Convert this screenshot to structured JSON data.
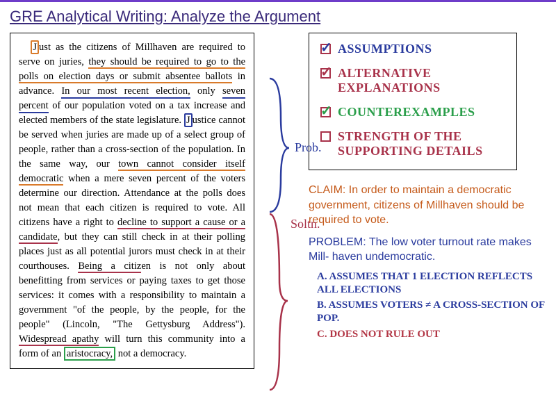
{
  "title": "GRE Analytical Writing: Analyze the Argument",
  "passage": {
    "text_html": "<span class='box-orange'>J</span>ust as the citizens of Millhaven are required to serve on juries, <span class='u-orange'>they should be required to go to the polls on election days or submit absentee ballots</span> in advance. <span class='u-blue'>In our most recent election,</span> only <span class='u-blue'>seven percent</span> of our population voted on a tax increase and elected members of the state legislature. <span class='box-blue'>J</span>ustice cannot be served when juries are made up of a select group of people, rather than a cross-section of the population. In the same way, our <span class='u-orange'>town cannot consider itself democratic</span> when a mere seven percent of the voters determine our direction. Attendance at the polls does not mean that each citizen is required to vote. All citizens have a right to <span class='u-maroon'>decline to support a cause or a candidate</span>, but they can still check in at their polling places just as all potential jurors must check in at their courthouses. <span class='u-maroon'>Being a citiz</span>en is not only about benefitting from services or paying taxes to get those services: it comes with a responsibility to maintain a government \"of the people, by the people, for the people\" (Lincoln, \"The Gettysburg Address\"). <span class='u-maroon'>Widespread apathy</span> will turn this community into a form of an <span class='box-green'>aristocracy,</span> not a democracy."
  },
  "checklist": [
    {
      "label": "ASSUMPTIONS",
      "color": "#2a3b9e",
      "box_color": "#a8324a",
      "check_color": "#2a3b9e",
      "checked": true
    },
    {
      "label": "ALTERNATIVE EXPLANATIONS",
      "color": "#a8324a",
      "box_color": "#a8324a",
      "check_color": "#a8324a",
      "checked": true
    },
    {
      "label": "COUNTEREXAMPLES",
      "color": "#2a9e4a",
      "box_color": "#a8324a",
      "check_color": "#2a9e4a",
      "checked": true
    },
    {
      "label": "STRENGTH OF THE SUPPORTING DETAILS",
      "color": "#a8324a",
      "box_color": "#a8324a",
      "check_color": "",
      "checked": false
    }
  ],
  "claim": "CLAIM: In order to maintain a democratic government, citizens of Millhaven should be required to vote.",
  "problem": "PROBLEM: The low voter turnout rate makes Mill- haven undemocratic.",
  "handwritten": [
    {
      "text": "A. Assumes that 1 election reflects all elections",
      "color": "#2a3b9e"
    },
    {
      "text": "B. Assumes voters ≠ a cross-section of pop.",
      "color": "#2a3b9e"
    },
    {
      "text": "C. Does not rule out",
      "color": "#b23544"
    }
  ],
  "side_labels": {
    "prob": "Prob.",
    "soltn": "Soltn."
  },
  "colors": {
    "title": "#3a2a7a",
    "top_border": "#6e3cc9",
    "orange": "#d97a2a",
    "blue": "#2a3b9e",
    "maroon": "#a8324a",
    "green": "#2a9e4a",
    "claim_orange": "#c55a1a"
  }
}
